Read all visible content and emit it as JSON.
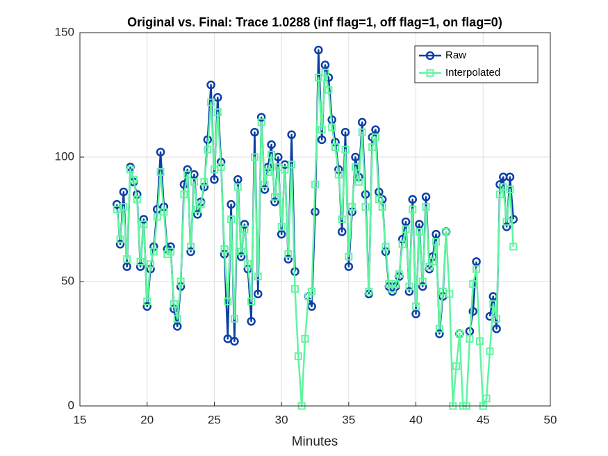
{
  "chart_data": {
    "type": "line",
    "title": "Original vs. Final: Trace 1.0288 (inf flag=1, off flag=1, on flag=0)",
    "x_label": "Minutes",
    "x": [
      17.75,
      18,
      18.25,
      18.5,
      18.75,
      19,
      19.25,
      19.5,
      19.75,
      20,
      20.25,
      20.5,
      20.75,
      21,
      21.25,
      21.5,
      21.75,
      22,
      22.25,
      22.5,
      22.75,
      23,
      23.25,
      23.5,
      23.75,
      24,
      24.25,
      24.5,
      24.75,
      25,
      25.25,
      25.5,
      25.75,
      26,
      26.25,
      26.5,
      26.75,
      27,
      27.25,
      27.5,
      27.75,
      28,
      28.25,
      28.5,
      28.75,
      29,
      29.25,
      29.5,
      29.75,
      30,
      30.25,
      30.5,
      30.75,
      31,
      31.25,
      31.5,
      31.75,
      32,
      32.25,
      32.5,
      32.75,
      33,
      33.25,
      33.5,
      33.75,
      34,
      34.25,
      34.5,
      34.75,
      35,
      35.25,
      35.5,
      35.75,
      36,
      36.25,
      36.5,
      36.75,
      37,
      37.25,
      37.5,
      37.75,
      38,
      38.25,
      38.5,
      38.75,
      39,
      39.25,
      39.5,
      39.75,
      40,
      40.25,
      40.5,
      40.75,
      41,
      41.25,
      41.5,
      41.75,
      42,
      42.25,
      42.5,
      42.75,
      43,
      43.25,
      43.5,
      43.75,
      44,
      44.25,
      44.5,
      44.75,
      45,
      45.25,
      45.5,
      45.75,
      46,
      46.25,
      46.5,
      46.75,
      47,
      47.25
    ],
    "series": [
      {
        "name": "Raw",
        "color": "#0b3fa6",
        "marker": "circle",
        "values": [
          81,
          65,
          86,
          56,
          96,
          90,
          85,
          56,
          75,
          40,
          55,
          64,
          79,
          102,
          80,
          63,
          64,
          39,
          32,
          48,
          89,
          95,
          62,
          93,
          77,
          82,
          88,
          107,
          129,
          91,
          124,
          98,
          61,
          27,
          81,
          26,
          91,
          60,
          73,
          55,
          34,
          110,
          45,
          116,
          87,
          96,
          105,
          82,
          100,
          69,
          97,
          59,
          109,
          54,
          null,
          null,
          null,
          44,
          40,
          78,
          143,
          107,
          137,
          132,
          115,
          106,
          95,
          70,
          110,
          56,
          78,
          100,
          92,
          114,
          85,
          45,
          108,
          111,
          86,
          83,
          62,
          48,
          46,
          48,
          52,
          67,
          74,
          46,
          83,
          37,
          73,
          48,
          84,
          55,
          60,
          69,
          29,
          44,
          70,
          null,
          null,
          null,
          29,
          null,
          null,
          30,
          38,
          58,
          null,
          null,
          null,
          36,
          44,
          31,
          89,
          92,
          72,
          92,
          75
        ]
      },
      {
        "name": "Interpolated",
        "color": "#5ff5a0",
        "marker": "square",
        "values": [
          79,
          67,
          80,
          59,
          95,
          91,
          83,
          58,
          73,
          42,
          57,
          62,
          76,
          94,
          78,
          61,
          62,
          41,
          35,
          50,
          85,
          93,
          64,
          90,
          79,
          81,
          90,
          103,
          122,
          95,
          118,
          96,
          63,
          42,
          75,
          35,
          88,
          62,
          71,
          57,
          42,
          100,
          52,
          114,
          89,
          94,
          101,
          84,
          96,
          72,
          95,
          61,
          97,
          47,
          20,
          0,
          27,
          44,
          46,
          89,
          132,
          111,
          134,
          127,
          112,
          104,
          93,
          75,
          103,
          60,
          80,
          96,
          90,
          110,
          80,
          46,
          104,
          108,
          83,
          80,
          64,
          49,
          47,
          49,
          53,
          65,
          71,
          48,
          79,
          40,
          70,
          50,
          80,
          56,
          58,
          66,
          31,
          46,
          70,
          45,
          0,
          16,
          29,
          0,
          0,
          27,
          49,
          55,
          26,
          0,
          3,
          22,
          41,
          35,
          85,
          88,
          74,
          87,
          64
        ]
      }
    ],
    "xlim": [
      15,
      50
    ],
    "xticks": [
      15,
      20,
      25,
      30,
      35,
      40,
      45,
      50
    ],
    "ylim": [
      0,
      150
    ],
    "yticks": [
      0,
      50,
      100,
      150
    ],
    "grid": true,
    "legend": "northeast"
  }
}
